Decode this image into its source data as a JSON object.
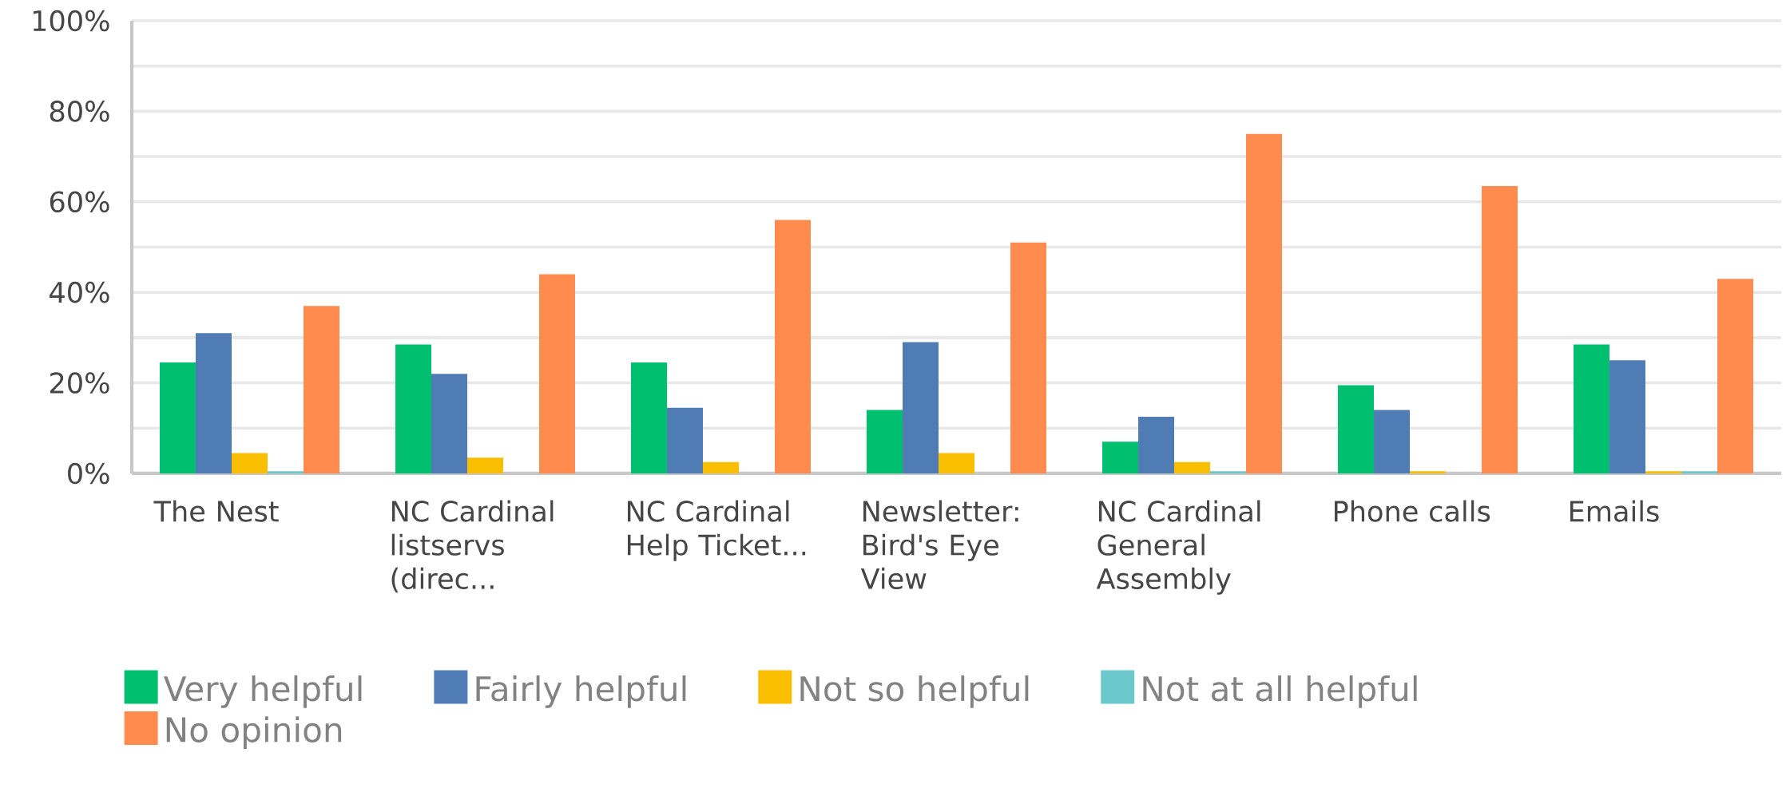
{
  "chart_data": {
    "type": "bar",
    "categories": [
      "The Nest",
      "NC Cardinal listservs (direc...",
      "NC Cardinal Help Ticket...",
      "Newsletter: Bird's Eye View",
      "NC Cardinal General Assembly",
      "Phone calls",
      "Emails"
    ],
    "series": [
      {
        "name": "Very helpful",
        "color": "#00bf6f",
        "values": [
          24.5,
          28.5,
          24.5,
          14,
          7,
          19.5,
          28.5
        ]
      },
      {
        "name": "Fairly helpful",
        "color": "#507cb6",
        "values": [
          31,
          22,
          14.5,
          29,
          12.5,
          14,
          25
        ]
      },
      {
        "name": "Not so helpful",
        "color": "#f9be00",
        "values": [
          4.5,
          3.5,
          2.5,
          4.5,
          2.5,
          0.5,
          0.5
        ]
      },
      {
        "name": "Not at all helpful",
        "color": "#6bc8cd",
        "values": [
          0.5,
          0,
          0,
          0,
          0.5,
          0,
          0.5
        ]
      },
      {
        "name": "No opinion",
        "color": "#ff8b4f",
        "values": [
          37,
          44,
          56,
          51,
          75,
          63.5,
          43
        ]
      }
    ],
    "ylim": [
      0,
      100
    ],
    "yticks": [
      {
        "value": 0,
        "label": "0%"
      },
      {
        "value": 10,
        "label": null
      },
      {
        "value": 20,
        "label": "20%"
      },
      {
        "value": 30,
        "label": null
      },
      {
        "value": 40,
        "label": "40%"
      },
      {
        "value": 50,
        "label": null
      },
      {
        "value": 60,
        "label": "60%"
      },
      {
        "value": 70,
        "label": null
      },
      {
        "value": 80,
        "label": "80%"
      },
      {
        "value": 90,
        "label": null
      },
      {
        "value": 100,
        "label": "100%"
      }
    ],
    "grid": "y",
    "legend": "bottom"
  }
}
